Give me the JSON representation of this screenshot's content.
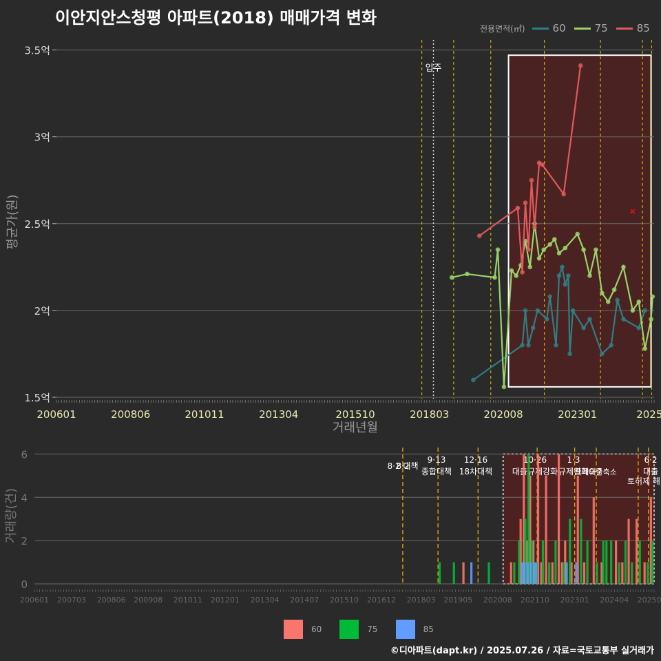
{
  "title": "이안지안스청평 아파트(2018) 매매가격 변화",
  "footer": "©디아파트(dapt.kr) / 2025.07.26 / 자료=국토교통부 실거래가",
  "colors": {
    "s60": "#2e7f82",
    "s75": "#9ad36a",
    "s85": "#e0595b",
    "bar60": "#f8766d",
    "bar75": "#00ba38",
    "bar85": "#619cff",
    "vline": "#d4b000",
    "highlight": "#6b1a1a"
  },
  "legend_top": {
    "title": "전용면적(㎡)",
    "items": [
      "60",
      "75",
      "85"
    ]
  },
  "legend_bottom": {
    "items": [
      "60",
      "75",
      "85"
    ]
  },
  "chart_data": [
    {
      "type": "line",
      "title": "이안지안스청평 아파트(2018) 매매가격 변화",
      "xlabel": "거래년월",
      "ylabel": "평균가(원)",
      "x_ticks": [
        "200601",
        "200806",
        "201011",
        "201304",
        "201510",
        "201803",
        "202008",
        "202301",
        "2025"
      ],
      "y_ticks": [
        "1.5억",
        "2억",
        "2.5억",
        "3억",
        "3.5억"
      ],
      "ylim": [
        1.5,
        3.55
      ],
      "xlim": [
        2006.0,
        2025.5
      ],
      "annotation": "입주",
      "annotation_x": 2018.3,
      "highlight_range": [
        2020.75,
        2025.5
      ],
      "vlines": [
        2017.92,
        2018.96,
        2020.17,
        2021.92,
        2023.75,
        2025.12,
        2025.42
      ],
      "series": [
        {
          "name": "60",
          "points": [
            [
              2019.6,
              1.6
            ],
            [
              2021.2,
              1.8
            ],
            [
              2021.3,
              2.0
            ],
            [
              2021.4,
              1.8
            ],
            [
              2021.55,
              1.9
            ],
            [
              2021.7,
              2.0
            ],
            [
              2022.0,
              1.95
            ],
            [
              2022.1,
              2.08
            ],
            [
              2022.3,
              1.8
            ],
            [
              2022.4,
              2.2
            ],
            [
              2022.5,
              2.25
            ],
            [
              2022.6,
              2.15
            ],
            [
              2022.7,
              2.2
            ],
            [
              2022.75,
              1.75
            ],
            [
              2022.85,
              2.0
            ],
            [
              2023.2,
              1.9
            ],
            [
              2023.4,
              1.95
            ],
            [
              2023.8,
              1.75
            ],
            [
              2024.1,
              1.8
            ],
            [
              2024.3,
              2.06
            ],
            [
              2024.5,
              1.95
            ],
            [
              2025.0,
              1.9
            ],
            [
              2025.2,
              2.0
            ]
          ]
        },
        {
          "name": "75",
          "points": [
            [
              2018.9,
              2.19
            ],
            [
              2019.4,
              2.21
            ],
            [
              2020.3,
              2.19
            ],
            [
              2020.4,
              2.35
            ],
            [
              2020.6,
              1.56
            ],
            [
              2020.85,
              2.23
            ],
            [
              2021.0,
              2.2
            ],
            [
              2021.15,
              2.26
            ],
            [
              2021.3,
              2.4
            ],
            [
              2021.45,
              2.25
            ],
            [
              2021.6,
              2.5
            ],
            [
              2021.75,
              2.3
            ],
            [
              2021.9,
              2.35
            ],
            [
              2022.1,
              2.38
            ],
            [
              2022.25,
              2.41
            ],
            [
              2022.4,
              2.33
            ],
            [
              2022.6,
              2.36
            ],
            [
              2023.0,
              2.44
            ],
            [
              2023.2,
              2.35
            ],
            [
              2023.4,
              2.2
            ],
            [
              2023.6,
              2.35
            ],
            [
              2023.8,
              2.1
            ],
            [
              2024.0,
              2.05
            ],
            [
              2024.2,
              2.12
            ],
            [
              2024.5,
              2.25
            ],
            [
              2024.8,
              2.0
            ],
            [
              2025.0,
              2.05
            ],
            [
              2025.2,
              1.78
            ],
            [
              2025.4,
              1.95
            ],
            [
              2025.45,
              2.08
            ]
          ]
        },
        {
          "name": "85",
          "points": [
            [
              2019.8,
              2.43
            ],
            [
              2021.05,
              2.59
            ],
            [
              2021.2,
              2.22
            ],
            [
              2021.3,
              2.62
            ],
            [
              2021.4,
              2.35
            ],
            [
              2021.5,
              2.75
            ],
            [
              2021.6,
              2.48
            ],
            [
              2021.75,
              2.85
            ],
            [
              2021.85,
              2.84
            ],
            [
              2022.55,
              2.67
            ],
            [
              2023.1,
              3.41
            ]
          ]
        }
      ],
      "outliers_85": [
        [
          2024.8,
          2.57
        ]
      ]
    },
    {
      "type": "bar",
      "ylabel": "거래량(건)",
      "ylim": [
        0,
        6.3
      ],
      "y_ticks": [
        "0",
        "2",
        "4",
        "6"
      ],
      "x_ticks": [
        "200601",
        "200703",
        "200806",
        "200908",
        "201011",
        "201201",
        "201304",
        "201407",
        "201510",
        "201612",
        "201803",
        "201905",
        "202008",
        "202110",
        "202301",
        "202404",
        "20250"
      ],
      "xlim": [
        2006.0,
        2025.5
      ],
      "highlight_range": [
        2020.75,
        2025.5
      ],
      "policy_events": [
        {
          "x": 2017.59,
          "date": "8·2",
          "label": "대책"
        },
        {
          "x": 2018.7,
          "date": "9·13",
          "label": "종합대책"
        },
        {
          "x": 2019.96,
          "date": "12·16",
          "label": "18차대책"
        },
        {
          "x": 2021.82,
          "date": "10·26",
          "label": "대출규제강화"
        },
        {
          "x": 2023.0,
          "date": "1·3",
          "label": "규제완화"
        },
        {
          "x": 2023.68,
          "date": "9·7",
          "label": "특례대출축소"
        },
        {
          "x": 2025.0,
          "date": "",
          "label": "토허제 해"
        },
        {
          "x": 2025.32,
          "date": "6·2",
          "label": "대출"
        }
      ],
      "bars_60": [
        [
          2019.5,
          1
        ],
        [
          2021.0,
          1
        ],
        [
          2021.3,
          3
        ],
        [
          2021.4,
          6
        ],
        [
          2021.5,
          2
        ],
        [
          2021.6,
          5
        ],
        [
          2021.7,
          2
        ],
        [
          2021.85,
          6
        ],
        [
          2021.95,
          1
        ],
        [
          2022.1,
          5
        ],
        [
          2022.3,
          1
        ],
        [
          2022.5,
          6
        ],
        [
          2022.6,
          1
        ],
        [
          2022.7,
          2
        ],
        [
          2022.9,
          1
        ],
        [
          2023.1,
          5
        ],
        [
          2023.3,
          1
        ],
        [
          2023.6,
          4
        ],
        [
          2023.85,
          1
        ],
        [
          2024.3,
          2
        ],
        [
          2024.5,
          1
        ],
        [
          2024.7,
          3
        ],
        [
          2024.95,
          3
        ],
        [
          2025.2,
          1
        ],
        [
          2025.4,
          4
        ]
      ],
      "bars_75": [
        [
          2018.75,
          1
        ],
        [
          2019.2,
          1
        ],
        [
          2020.3,
          1
        ],
        [
          2021.1,
          1
        ],
        [
          2021.25,
          2
        ],
        [
          2021.45,
          3
        ],
        [
          2021.55,
          6
        ],
        [
          2021.65,
          2
        ],
        [
          2021.8,
          1
        ],
        [
          2022.0,
          2
        ],
        [
          2022.2,
          1
        ],
        [
          2022.4,
          2
        ],
        [
          2022.65,
          1
        ],
        [
          2022.85,
          3
        ],
        [
          2023.2,
          3
        ],
        [
          2023.4,
          2
        ],
        [
          2023.7,
          1
        ],
        [
          2023.9,
          2
        ],
        [
          2024.0,
          2
        ],
        [
          2024.15,
          2
        ],
        [
          2024.4,
          1
        ],
        [
          2024.6,
          2
        ],
        [
          2024.8,
          1
        ],
        [
          2025.05,
          2
        ],
        [
          2025.3,
          1
        ],
        [
          2025.45,
          2
        ]
      ],
      "bars_85": [
        [
          2019.75,
          1
        ],
        [
          2021.35,
          1
        ],
        [
          2021.42,
          1
        ],
        [
          2021.52,
          1
        ],
        [
          2021.62,
          1
        ],
        [
          2021.72,
          1
        ],
        [
          2021.78,
          1
        ],
        [
          2022.75,
          1
        ],
        [
          2023.05,
          1
        ]
      ]
    }
  ]
}
